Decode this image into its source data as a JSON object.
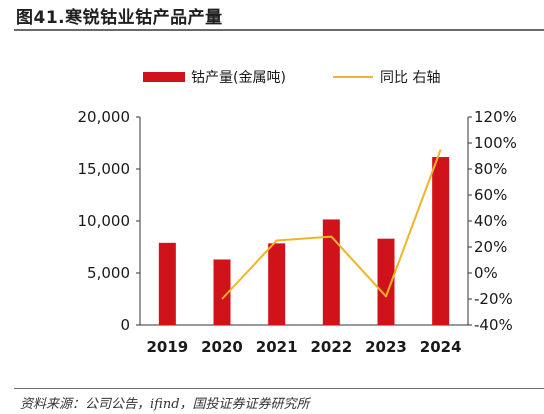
{
  "figure": {
    "title": "图41.寒锐钴业钴产品产量",
    "source": "资料来源：公司公告，ifind，国投证券证券研究所"
  },
  "colors": {
    "bar": "#d0121b",
    "line": "#f0b428"
  },
  "chart_data": {
    "type": "bar",
    "categories": [
      "2019",
      "2020",
      "2021",
      "2022",
      "2023",
      "2024"
    ],
    "series": [
      {
        "name": "钴产量(金属吨)",
        "type": "bar",
        "axis": "left",
        "values": [
          7900,
          6300,
          7850,
          10150,
          8300,
          16150
        ]
      },
      {
        "name": "同比 右轴",
        "type": "line",
        "axis": "right",
        "values": [
          null,
          -20,
          25,
          28,
          -18,
          95
        ]
      }
    ],
    "y_left": {
      "min": 0,
      "max": 20000,
      "ticks": [
        0,
        5000,
        10000,
        15000,
        20000
      ],
      "tick_labels": [
        "0",
        "5,000",
        "10,000",
        "15,000",
        "20,000"
      ]
    },
    "y_right": {
      "min": -40,
      "max": 120,
      "ticks": [
        -40,
        -20,
        0,
        20,
        40,
        60,
        80,
        100,
        120
      ],
      "tick_labels": [
        "-40%",
        "-20%",
        "0%",
        "20%",
        "40%",
        "60%",
        "80%",
        "100%",
        "120%"
      ]
    },
    "legend_position": "top",
    "grid": false
  }
}
